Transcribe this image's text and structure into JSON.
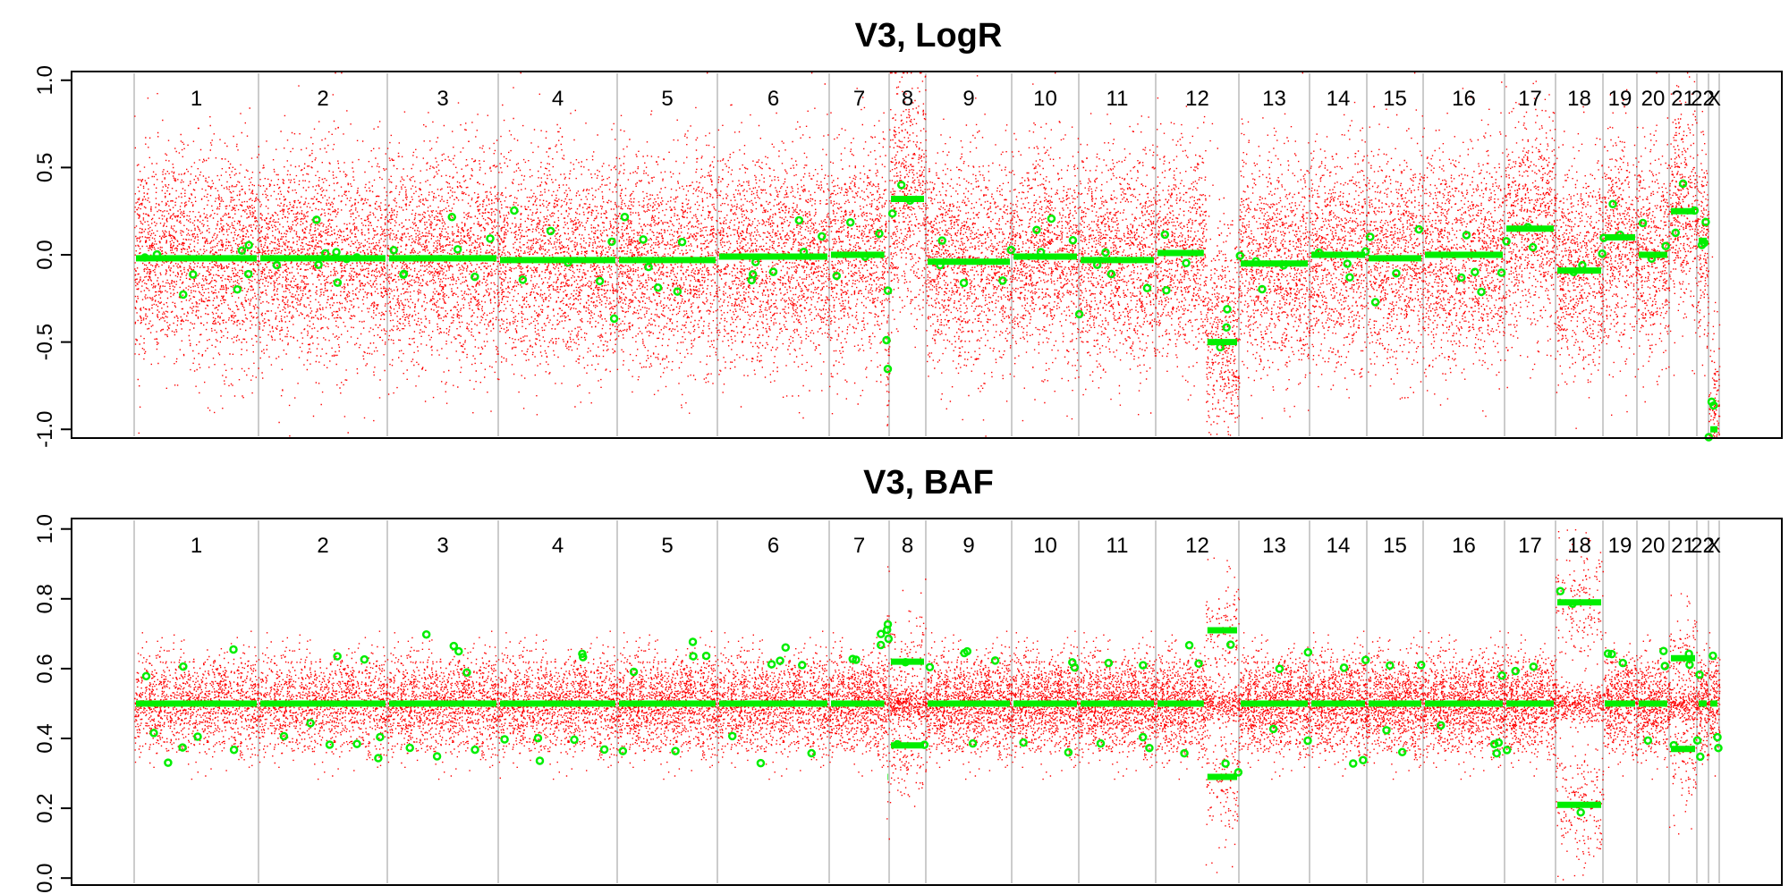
{
  "colors": {
    "points": "#ff0000",
    "segments": "#00ee00",
    "separators": "#cccccc",
    "axes": "#000000"
  },
  "chart_data": [
    {
      "type": "scatter",
      "title": "V3, LogR",
      "ylim": [
        -1.05,
        1.05
      ],
      "yticks": [
        "-1.0",
        "-0.5",
        "0.0",
        "0.5",
        "1.0"
      ],
      "ytick_values": [
        -1.0,
        -0.5,
        0.0,
        0.5,
        1.0
      ],
      "chromosomes": [
        "1",
        "2",
        "3",
        "4",
        "5",
        "6",
        "7",
        "8",
        "9",
        "10",
        "11",
        "12",
        "13",
        "14",
        "15",
        "16",
        "17",
        "18",
        "19",
        "20",
        "21",
        "22",
        "X"
      ],
      "segments": [
        {
          "chr": "1",
          "level": -0.02,
          "noise": 0.3
        },
        {
          "chr": "2",
          "level": -0.02,
          "noise": 0.3
        },
        {
          "chr": "3",
          "level": -0.02,
          "noise": 0.3
        },
        {
          "chr": "4",
          "level": -0.03,
          "noise": 0.3
        },
        {
          "chr": "5",
          "level": -0.03,
          "noise": 0.3
        },
        {
          "chr": "6",
          "level": -0.01,
          "noise": 0.3
        },
        {
          "chr": "7",
          "level": 0.0,
          "noise": 0.3,
          "to": 0.95
        },
        {
          "chr": "7",
          "level": -0.48,
          "noise": 0.35,
          "from": 0.95
        },
        {
          "chr": "8",
          "level": 0.32,
          "noise": 0.35
        },
        {
          "chr": "9",
          "level": -0.04,
          "noise": 0.3
        },
        {
          "chr": "10",
          "level": -0.01,
          "noise": 0.3
        },
        {
          "chr": "11",
          "level": -0.03,
          "noise": 0.3
        },
        {
          "chr": "12",
          "level": 0.01,
          "noise": 0.3,
          "to": 0.6
        },
        {
          "chr": "12",
          "level": -0.5,
          "noise": 0.35,
          "from": 0.6
        },
        {
          "chr": "13",
          "level": -0.05,
          "noise": 0.3
        },
        {
          "chr": "14",
          "level": 0.0,
          "noise": 0.3
        },
        {
          "chr": "15",
          "level": -0.02,
          "noise": 0.3
        },
        {
          "chr": "16",
          "level": 0.0,
          "noise": 0.3
        },
        {
          "chr": "17",
          "level": 0.15,
          "noise": 0.3
        },
        {
          "chr": "18",
          "level": -0.09,
          "noise": 0.3
        },
        {
          "chr": "19",
          "level": 0.1,
          "noise": 0.3
        },
        {
          "chr": "20",
          "level": 0.0,
          "noise": 0.3
        },
        {
          "chr": "21",
          "level": 0.25,
          "noise": 0.3
        },
        {
          "chr": "22",
          "level": 0.08,
          "noise": 0.3
        },
        {
          "chr": "X",
          "level": -1.0,
          "noise": 0.3
        }
      ]
    },
    {
      "type": "scatter",
      "title": "V3, BAF",
      "ylim": [
        -0.02,
        1.03
      ],
      "yticks": [
        "0.0",
        "0.2",
        "0.4",
        "0.6",
        "0.8",
        "1.0"
      ],
      "ytick_values": [
        0.0,
        0.2,
        0.4,
        0.6,
        0.8,
        1.0
      ],
      "chromosomes": [
        "1",
        "2",
        "3",
        "4",
        "5",
        "6",
        "7",
        "8",
        "9",
        "10",
        "11",
        "12",
        "13",
        "14",
        "15",
        "16",
        "17",
        "18",
        "19",
        "20",
        "21",
        "22",
        "X"
      ],
      "segments": [
        {
          "chr": "1",
          "bands": [
            0.5
          ],
          "spread": 0.07
        },
        {
          "chr": "2",
          "bands": [
            0.5
          ],
          "spread": 0.07
        },
        {
          "chr": "3",
          "bands": [
            0.5
          ],
          "spread": 0.07
        },
        {
          "chr": "4",
          "bands": [
            0.5
          ],
          "spread": 0.07
        },
        {
          "chr": "5",
          "bands": [
            0.5
          ],
          "spread": 0.07
        },
        {
          "chr": "6",
          "bands": [
            0.5
          ],
          "spread": 0.07
        },
        {
          "chr": "7",
          "bands": [
            0.5
          ],
          "spread": 0.07,
          "to": 0.95
        },
        {
          "chr": "7",
          "bands": [
            0.29,
            0.71
          ],
          "spread": 0.09,
          "from": 0.95
        },
        {
          "chr": "8",
          "bands": [
            0.38,
            0.62
          ],
          "spread": 0.08
        },
        {
          "chr": "9",
          "bands": [
            0.5
          ],
          "spread": 0.07
        },
        {
          "chr": "10",
          "bands": [
            0.5
          ],
          "spread": 0.07
        },
        {
          "chr": "11",
          "bands": [
            0.5
          ],
          "spread": 0.07
        },
        {
          "chr": "12",
          "bands": [
            0.5
          ],
          "spread": 0.07,
          "to": 0.6
        },
        {
          "chr": "12",
          "bands": [
            0.29,
            0.71
          ],
          "spread": 0.09,
          "from": 0.6
        },
        {
          "chr": "13",
          "bands": [
            0.5
          ],
          "spread": 0.07
        },
        {
          "chr": "14",
          "bands": [
            0.5
          ],
          "spread": 0.07
        },
        {
          "chr": "15",
          "bands": [
            0.5
          ],
          "spread": 0.07
        },
        {
          "chr": "16",
          "bands": [
            0.5
          ],
          "spread": 0.07
        },
        {
          "chr": "17",
          "bands": [
            0.5
          ],
          "spread": 0.07
        },
        {
          "chr": "18",
          "bands": [
            0.21,
            0.79
          ],
          "spread": 0.09
        },
        {
          "chr": "19",
          "bands": [
            0.5
          ],
          "spread": 0.07
        },
        {
          "chr": "20",
          "bands": [
            0.5
          ],
          "spread": 0.07
        },
        {
          "chr": "21",
          "bands": [
            0.37,
            0.63
          ],
          "spread": 0.08
        },
        {
          "chr": "22",
          "bands": [
            0.5
          ],
          "spread": 0.07
        },
        {
          "chr": "X",
          "bands": [
            0.5
          ],
          "spread": 0.07
        }
      ]
    }
  ]
}
